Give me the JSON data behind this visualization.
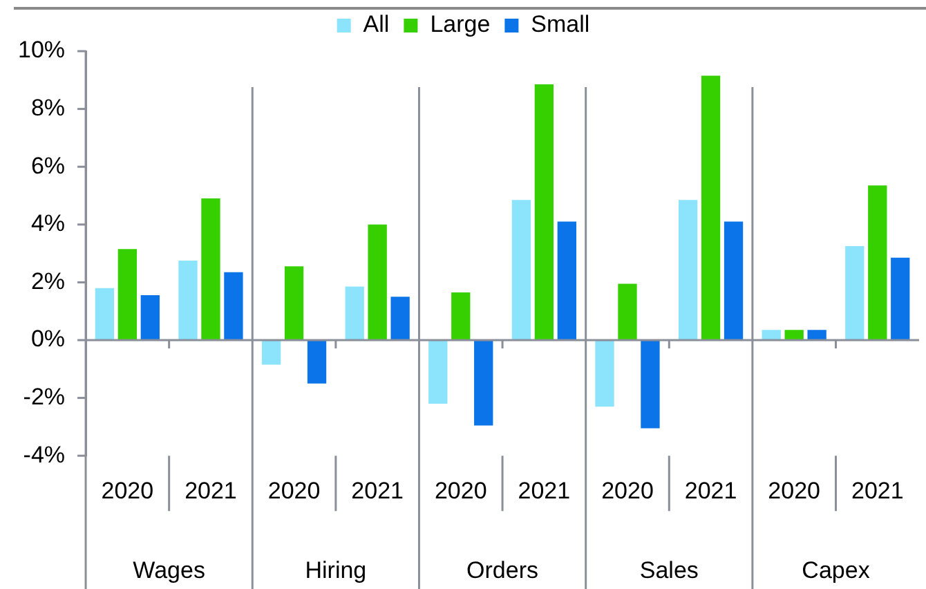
{
  "chart_data": {
    "type": "bar",
    "categories": [
      "2020",
      "2021",
      "2020",
      "2021",
      "2020",
      "2021",
      "2020",
      "2021",
      "2020",
      "2021"
    ],
    "annotations": [
      "Wages",
      "Hiring",
      "Orders",
      "Sales",
      "Capex"
    ],
    "series": [
      {
        "name": "All",
        "color": "#8be4fc",
        "values": [
          1.85,
          2.8,
          -0.9,
          1.9,
          -2.25,
          4.9,
          -2.35,
          4.9,
          0.4,
          3.3
        ]
      },
      {
        "name": "Large",
        "color": "#36d000",
        "values": [
          3.2,
          4.95,
          2.6,
          4.05,
          1.7,
          8.9,
          2.0,
          9.2,
          0.4,
          5.4
        ]
      },
      {
        "name": "Small",
        "color": "#0a74e8",
        "values": [
          1.6,
          2.4,
          -1.55,
          1.55,
          -3.0,
          4.15,
          -3.1,
          4.15,
          0.4,
          2.9
        ]
      }
    ],
    "ylim": [
      -4,
      10
    ],
    "yticks": [
      {
        "value": -4,
        "label": "-4%"
      },
      {
        "value": -2,
        "label": "-2%"
      },
      {
        "value": 0,
        "label": "0%"
      },
      {
        "value": 2,
        "label": "2%"
      },
      {
        "value": 4,
        "label": "4%"
      },
      {
        "value": 6,
        "label": "6%"
      },
      {
        "value": 8,
        "label": "8%"
      },
      {
        "value": 10,
        "label": "10%"
      }
    ],
    "legend": "top"
  }
}
